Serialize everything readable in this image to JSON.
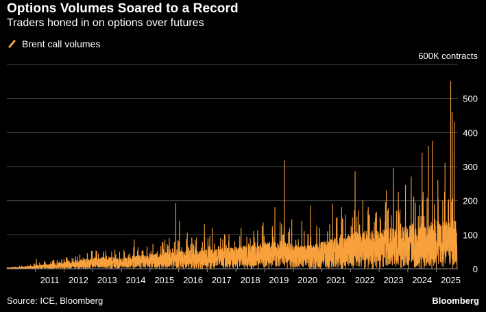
{
  "chart_data": {
    "type": "line",
    "title": "Options Volumes Soared to a Record",
    "subtitle": "Traders honed in on options over futures",
    "ylabel": "600K contracts",
    "ylim": [
      0,
      600
    ],
    "yticks": [
      0,
      100,
      200,
      300,
      400,
      500
    ],
    "xlim": [
      2010.0,
      2025.75
    ],
    "xticks": [
      2011,
      2012,
      2013,
      2014,
      2015,
      2016,
      2017,
      2018,
      2019,
      2020,
      2021,
      2022,
      2023,
      2024,
      2025
    ],
    "grid": true,
    "legend_position": "top-left",
    "series": [
      {
        "name": "Brent call volumes",
        "color": "#f7a03c",
        "frequency": "daily",
        "baseline": {
          "x": [
            2010.0,
            2010.5,
            2011.0,
            2011.5,
            2012.0,
            2012.5,
            2013.0,
            2013.5,
            2014.0,
            2014.5,
            2015.0,
            2015.5,
            2016.0,
            2016.5,
            2017.0,
            2017.5,
            2018.0,
            2018.5,
            2019.0,
            2019.5,
            2020.0,
            2020.5,
            2021.0,
            2021.5,
            2022.0,
            2022.5,
            2023.0,
            2023.5,
            2024.0,
            2024.5,
            2025.0,
            2025.5,
            2025.75
          ],
          "y": [
            2,
            3,
            6,
            9,
            12,
            16,
            20,
            22,
            20,
            24,
            26,
            30,
            32,
            34,
            36,
            38,
            40,
            44,
            48,
            52,
            45,
            42,
            50,
            58,
            65,
            70,
            72,
            76,
            80,
            86,
            88,
            90,
            90
          ]
        },
        "peaks": [
          {
            "x": 2011.03,
            "y": 28
          },
          {
            "x": 2011.32,
            "y": 22
          },
          {
            "x": 2011.63,
            "y": 18
          },
          {
            "x": 2012.32,
            "y": 30
          },
          {
            "x": 2012.55,
            "y": 42
          },
          {
            "x": 2012.81,
            "y": 45
          },
          {
            "x": 2013.2,
            "y": 44
          },
          {
            "x": 2013.66,
            "y": 50
          },
          {
            "x": 2014.45,
            "y": 85
          },
          {
            "x": 2014.72,
            "y": 52
          },
          {
            "x": 2015.1,
            "y": 72
          },
          {
            "x": 2015.52,
            "y": 85
          },
          {
            "x": 2015.67,
            "y": 90
          },
          {
            "x": 2015.9,
            "y": 192
          },
          {
            "x": 2016.03,
            "y": 140
          },
          {
            "x": 2016.3,
            "y": 105
          },
          {
            "x": 2016.9,
            "y": 130
          },
          {
            "x": 2017.17,
            "y": 120
          },
          {
            "x": 2017.6,
            "y": 100
          },
          {
            "x": 2018.18,
            "y": 120
          },
          {
            "x": 2018.62,
            "y": 110
          },
          {
            "x": 2018.95,
            "y": 135
          },
          {
            "x": 2019.36,
            "y": 180
          },
          {
            "x": 2019.69,
            "y": 318
          },
          {
            "x": 2019.95,
            "y": 145
          },
          {
            "x": 2020.3,
            "y": 140
          },
          {
            "x": 2020.6,
            "y": 185
          },
          {
            "x": 2020.92,
            "y": 120
          },
          {
            "x": 2021.38,
            "y": 190
          },
          {
            "x": 2021.69,
            "y": 180
          },
          {
            "x": 2022.16,
            "y": 285
          },
          {
            "x": 2022.43,
            "y": 200
          },
          {
            "x": 2022.62,
            "y": 180
          },
          {
            "x": 2022.87,
            "y": 150
          },
          {
            "x": 2023.25,
            "y": 230
          },
          {
            "x": 2023.5,
            "y": 295
          },
          {
            "x": 2023.67,
            "y": 225
          },
          {
            "x": 2023.92,
            "y": 245
          },
          {
            "x": 2024.12,
            "y": 270
          },
          {
            "x": 2024.5,
            "y": 340
          },
          {
            "x": 2024.72,
            "y": 360
          },
          {
            "x": 2024.86,
            "y": 375
          },
          {
            "x": 2025.05,
            "y": 260
          },
          {
            "x": 2025.3,
            "y": 310
          },
          {
            "x": 2025.5,
            "y": 550
          },
          {
            "x": 2025.55,
            "y": 460
          },
          {
            "x": 2025.62,
            "y": 430
          }
        ]
      }
    ]
  },
  "legend": {
    "label": "Brent call volumes",
    "icon": "orange-line-icon"
  },
  "footer": {
    "source": "Source: ICE, Bloomberg",
    "brand": "Bloomberg"
  },
  "colors": {
    "background": "#000000",
    "series": "#f7a03c",
    "grid": "#4a4a4a",
    "text": "#ffffff"
  }
}
